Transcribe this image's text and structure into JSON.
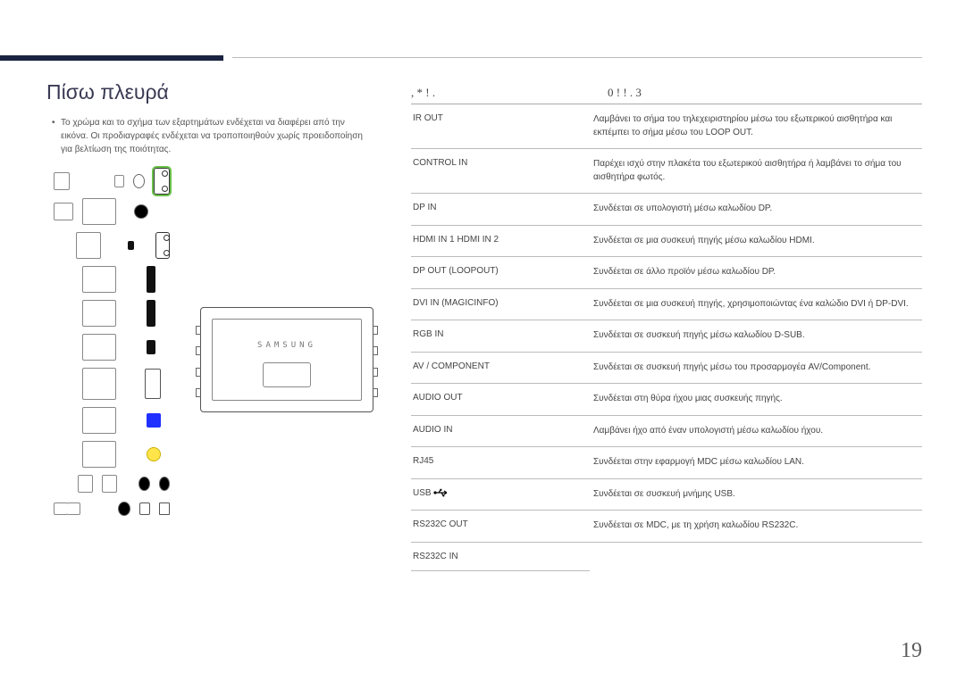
{
  "heading": "Πίσω πλευρά",
  "note": "Το χρώμα και το σχήμα των εξαρτημάτων ενδέχεται να διαφέρει από την εικόνα. Οι προδιαγραφές ενδέχεται να τροποποιηθούν χωρίς προειδοποίηση για βελτίωση της ποιότητας.",
  "table_header_left": ", * ! .",
  "table_header_right": "0 !   ! . 3",
  "device_brand": "SAMSUNG",
  "usb_glyph": "⬊",
  "rows": [
    {
      "port": "IR OUT",
      "desc": "Λαμβάνει το σήμα του τηλεχειριστηρίου μέσω του εξωτερικού αισθητήρα και εκπέμπει το σήμα μέσω του LOOP OUT."
    },
    {
      "port": "CONTROL IN",
      "desc": "Παρέχει ισχύ στην πλακέτα του εξωτερικού αισθητήρα ή λαμβάνει το σήμα του αισθητήρα φωτός."
    },
    {
      "port": "DP IN",
      "desc": "Συνδέεται σε υπολογιστή μέσω καλωδίου DP."
    },
    {
      "port": "HDMI IN 1    HDMI IN 2",
      "desc": "Συνδέεται σε μια συσκευή πηγής μέσω καλωδίου HDMI."
    },
    {
      "port": "DP OUT (LOOPOUT)",
      "desc": "Συνδέεται σε άλλο προϊόν μέσω καλωδίου DP."
    },
    {
      "port": "DVI IN (MAGICINFO)",
      "desc": "Συνδέεται σε μια συσκευή πηγής, χρησιμοποιώντας ένα καλώδιο DVI ή DP-DVI."
    },
    {
      "port": "RGB IN",
      "desc": "Συνδέεται σε συσκευή πηγής μέσω καλωδίου D-SUB."
    },
    {
      "port": "AV / COMPONENT",
      "desc": "Συνδέεται σε συσκευή πηγής μέσω του προσαρμογέα AV/Component."
    },
    {
      "port": "AUDIO OUT",
      "desc": "Συνδέεται στη θύρα ήχου μιας συσκευής πηγής."
    },
    {
      "port": "AUDIO IN",
      "desc": "Λαμβάνει ήχο από έναν υπολογιστή μέσω καλωδίου ήχου."
    },
    {
      "port": "RJ45",
      "desc": "Συνδέεται στην εφαρμογή MDC μέσω καλωδίου LAN."
    },
    {
      "port": "USB ",
      "desc": "Συνδέεται σε συσκευή μνήμης USB.",
      "usb": true
    },
    {
      "port": "RS232C OUT",
      "desc": "Συνδέεται σε MDC, με τη χρήση καλωδίου RS232C."
    },
    {
      "port": "RS232C IN",
      "desc": "",
      "lastport": true
    }
  ],
  "page_number": "19",
  "colors": {
    "top_bar": "#1a2340",
    "rule": "#bbbbbb",
    "text": "#3a3a3a",
    "port_green": "#6cc24a",
    "port_blue": "#2030ff",
    "port_yellow": "#ffe54a"
  }
}
